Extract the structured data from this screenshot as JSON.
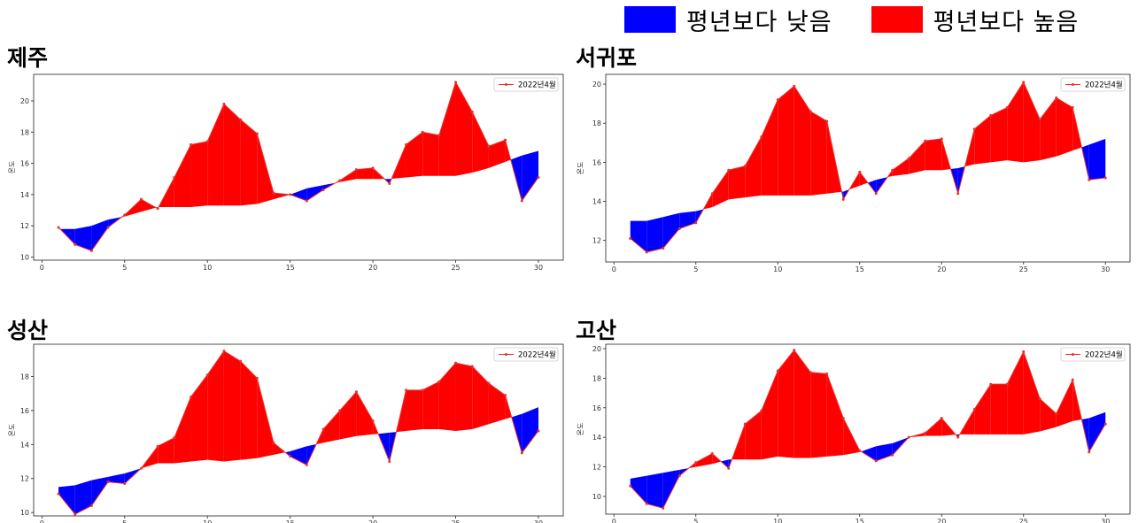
{
  "legend": {
    "below_label": "평년보다 낮음",
    "above_label": "평년보다 높음",
    "below_color": "#0000ff",
    "above_color": "#ff0000"
  },
  "line_color": "#e8322c",
  "chart_data": [
    {
      "type": "area",
      "title": "제주",
      "ylabel": "온도",
      "series_name": "2022년4월",
      "legend_position": "top-right",
      "xlim": [
        -0.5,
        31.5
      ],
      "ylim": [
        9.8,
        21.7
      ],
      "xticks": [
        0,
        5,
        10,
        15,
        20,
        25,
        30
      ],
      "yticks": [
        10,
        12,
        14,
        16,
        18,
        20
      ],
      "x": [
        1,
        2,
        3,
        4,
        5,
        6,
        7,
        8,
        9,
        10,
        11,
        12,
        13,
        14,
        15,
        16,
        17,
        18,
        19,
        20,
        21,
        22,
        23,
        24,
        25,
        26,
        27,
        28,
        29,
        30
      ],
      "values": [
        11.9,
        10.8,
        10.4,
        11.9,
        12.7,
        13.7,
        13.1,
        15.1,
        17.2,
        17.4,
        19.8,
        18.8,
        17.9,
        14.1,
        14.0,
        13.6,
        14.3,
        14.9,
        15.6,
        15.7,
        14.7,
        17.2,
        18.0,
        17.8,
        21.2,
        19.3,
        17.1,
        17.5,
        13.6,
        15.1
      ],
      "normal": [
        11.8,
        11.8,
        12.0,
        12.4,
        12.6,
        12.9,
        13.2,
        13.2,
        13.2,
        13.3,
        13.3,
        13.3,
        13.4,
        13.7,
        14.0,
        14.4,
        14.6,
        14.8,
        15.0,
        15.0,
        15.0,
        15.1,
        15.2,
        15.2,
        15.2,
        15.4,
        15.7,
        16.1,
        16.5,
        16.8
      ]
    },
    {
      "type": "area",
      "title": "서귀포",
      "ylabel": "온도",
      "series_name": "2022년4월",
      "legend_position": "top-right",
      "xlim": [
        -0.5,
        31.5
      ],
      "ylim": [
        10.9,
        20.5
      ],
      "xticks": [
        0,
        5,
        10,
        15,
        20,
        25,
        30
      ],
      "yticks": [
        12,
        14,
        16,
        18,
        20
      ],
      "x": [
        1,
        2,
        3,
        4,
        5,
        6,
        7,
        8,
        9,
        10,
        11,
        12,
        13,
        14,
        15,
        16,
        17,
        18,
        19,
        20,
        21,
        22,
        23,
        24,
        25,
        26,
        27,
        28,
        29,
        30
      ],
      "values": [
        12.1,
        11.4,
        11.6,
        12.6,
        12.9,
        14.4,
        15.6,
        15.8,
        17.3,
        19.2,
        19.9,
        18.6,
        18.1,
        14.1,
        15.5,
        14.4,
        15.6,
        16.2,
        17.1,
        17.2,
        14.4,
        17.7,
        18.4,
        18.8,
        20.1,
        18.2,
        19.3,
        18.8,
        15.1,
        15.2
      ],
      "normal": [
        13.0,
        13.0,
        13.2,
        13.4,
        13.5,
        13.7,
        14.1,
        14.2,
        14.3,
        14.3,
        14.3,
        14.3,
        14.4,
        14.5,
        14.8,
        15.1,
        15.3,
        15.4,
        15.6,
        15.6,
        15.7,
        15.9,
        16.0,
        16.1,
        16.0,
        16.1,
        16.3,
        16.6,
        16.9,
        17.2
      ]
    },
    {
      "type": "area",
      "title": "성산",
      "ylabel": "온도",
      "series_name": "2022년4월",
      "legend_position": "top-right",
      "xlim": [
        -0.5,
        31.5
      ],
      "ylim": [
        9.8,
        19.9
      ],
      "xticks": [
        0,
        5,
        10,
        15,
        20,
        25,
        30
      ],
      "yticks": [
        10,
        12,
        14,
        16,
        18
      ],
      "x": [
        1,
        2,
        3,
        4,
        5,
        6,
        7,
        8,
        9,
        10,
        11,
        12,
        13,
        14,
        15,
        16,
        17,
        18,
        19,
        20,
        21,
        22,
        23,
        24,
        25,
        26,
        27,
        28,
        29,
        30
      ],
      "values": [
        11.1,
        9.9,
        10.4,
        11.8,
        11.7,
        12.6,
        13.9,
        14.4,
        16.8,
        18.1,
        19.5,
        18.9,
        17.9,
        14.1,
        13.3,
        12.8,
        14.9,
        16.0,
        17.1,
        15.4,
        13.0,
        17.2,
        17.2,
        17.7,
        18.8,
        18.6,
        17.6,
        16.9,
        13.5,
        14.8
      ],
      "normal": [
        11.5,
        11.6,
        11.9,
        12.1,
        12.3,
        12.6,
        12.9,
        12.9,
        13.0,
        13.1,
        13.0,
        13.1,
        13.2,
        13.4,
        13.6,
        13.9,
        14.1,
        14.3,
        14.5,
        14.6,
        14.7,
        14.8,
        14.9,
        14.9,
        14.8,
        14.9,
        15.2,
        15.5,
        15.8,
        16.2
      ]
    },
    {
      "type": "area",
      "title": "고산",
      "ylabel": "온도",
      "series_name": "2022년4월",
      "legend_position": "top-right",
      "xlim": [
        -0.5,
        31.5
      ],
      "ylim": [
        8.8,
        20.3
      ],
      "xticks": [
        0,
        5,
        10,
        15,
        20,
        25,
        30
      ],
      "yticks": [
        10,
        12,
        14,
        16,
        18,
        20
      ],
      "x": [
        1,
        2,
        3,
        4,
        5,
        6,
        7,
        8,
        9,
        10,
        11,
        12,
        13,
        14,
        15,
        16,
        17,
        18,
        19,
        20,
        21,
        22,
        23,
        24,
        25,
        26,
        27,
        28,
        29,
        30
      ],
      "values": [
        10.7,
        9.5,
        9.2,
        11.4,
        12.3,
        12.9,
        11.9,
        14.9,
        15.8,
        18.5,
        19.9,
        18.4,
        18.3,
        15.3,
        13.1,
        12.4,
        12.8,
        14.0,
        14.3,
        15.3,
        14.0,
        15.9,
        17.6,
        17.6,
        19.8,
        16.6,
        15.6,
        17.9,
        13.0,
        14.9
      ],
      "normal": [
        11.2,
        11.4,
        11.6,
        11.8,
        12.0,
        12.2,
        12.5,
        12.5,
        12.5,
        12.7,
        12.6,
        12.6,
        12.7,
        12.8,
        13.0,
        13.4,
        13.6,
        14.0,
        14.1,
        14.1,
        14.2,
        14.2,
        14.2,
        14.2,
        14.2,
        14.4,
        14.7,
        15.1,
        15.3,
        15.7
      ]
    }
  ]
}
